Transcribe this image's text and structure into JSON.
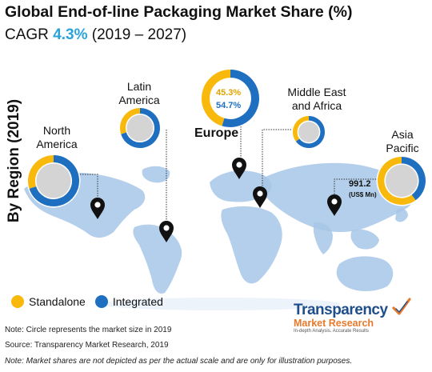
{
  "header": {
    "title": "Global End-of-line Packaging Market Share (%)",
    "cagr_prefix": "CAGR ",
    "cagr_value": "4.3%",
    "cagr_period": " (2019 – 2027)"
  },
  "side_label": "By Region (2019)",
  "colors": {
    "standalone": "#f9b90c",
    "integrated": "#1f6fc1",
    "inner": "#d4d4d4",
    "map": "#a7c7e7"
  },
  "chart_data": {
    "type": "pie",
    "title": "Global End-of-line Packaging Market Share (%)",
    "series_names": [
      "Standalone",
      "Integrated"
    ],
    "regions": [
      {
        "name": "North America",
        "label_lines": [
          "North",
          "America"
        ],
        "standalone": 30,
        "integrated": 70
      },
      {
        "name": "Latin America",
        "label_lines": [
          "Latin",
          "America"
        ],
        "standalone": 30,
        "integrated": 70
      },
      {
        "name": "Europe",
        "label_lines": [
          "Europe"
        ],
        "standalone": 45.3,
        "integrated": 54.7,
        "standalone_label": "45.3%",
        "integrated_label": "54.7%"
      },
      {
        "name": "Middle East and Africa",
        "label_lines": [
          "Middle East",
          "and Africa"
        ],
        "standalone": 35,
        "integrated": 65
      },
      {
        "name": "Asia Pacific",
        "label_lines": [
          "Asia",
          "Pacific"
        ],
        "standalone": 60,
        "integrated": 40,
        "market_size": "991.2",
        "market_size_unit": "(US$ Mn)"
      }
    ]
  },
  "legend": {
    "standalone": "Standalone",
    "integrated": "Integrated"
  },
  "notes": {
    "note1": "Note: Circle represents the market size in 2019",
    "source": "Source: Transparency Market Research, 2019",
    "note2": "Note:  Market shares are not depicted as per the actual scale and are only for illustration purposes."
  },
  "logo": {
    "line1": "Transparency",
    "line2": "Market Research",
    "tagline": "In-depth Analysis. Accurate Results"
  }
}
